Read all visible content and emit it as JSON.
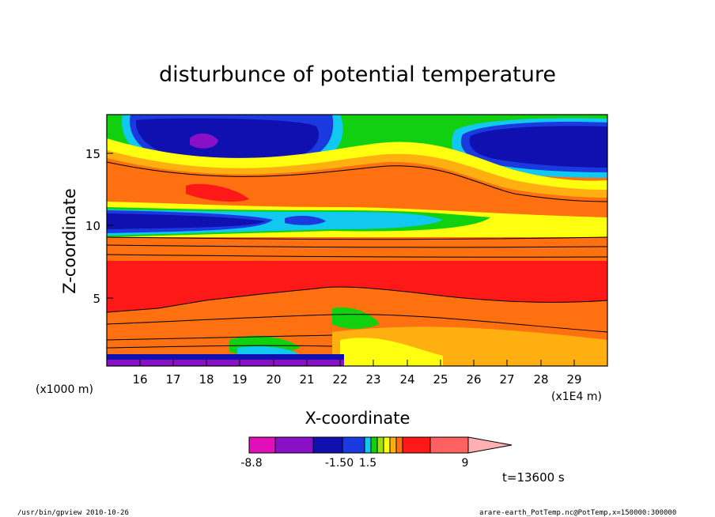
{
  "chart_data": {
    "type": "heatmap",
    "title": "disturbunce of potential temperature",
    "xlabel": "X-coordinate",
    "ylabel": "Z-coordinate",
    "x_unit_label": "(x1E4 m)",
    "y_unit_label": "(x1000 m)",
    "xlim": [
      15,
      30
    ],
    "ylim": [
      0.3,
      17.6
    ],
    "x_ticks": [
      "16",
      "17",
      "18",
      "19",
      "20",
      "21",
      "22",
      "23",
      "24",
      "25",
      "26",
      "27",
      "28",
      "29"
    ],
    "y_ticks": [
      "5",
      "10",
      "15"
    ],
    "colorbar": {
      "labels": [
        "-8.8",
        "-1.50",
        "1.5",
        "9"
      ],
      "label_values": [
        -8.8,
        -1.5,
        1.5,
        9
      ],
      "colors": [
        "#e010b8",
        "#8a10c8",
        "#1010b0",
        "#1a3ae0",
        "#10c8f0",
        "#10d010",
        "#a0e010",
        "#ffff10",
        "#ffb010",
        "#ff7010",
        "#ff1818",
        "#ff6060",
        "#ffb0b0"
      ]
    },
    "time_label": "t=13600 s"
  },
  "footer": {
    "left": "/usr/bin/gpview   2010-10-26",
    "right": "arare-earth_PotTemp.nc@PotTemp,x=150000:300000"
  }
}
